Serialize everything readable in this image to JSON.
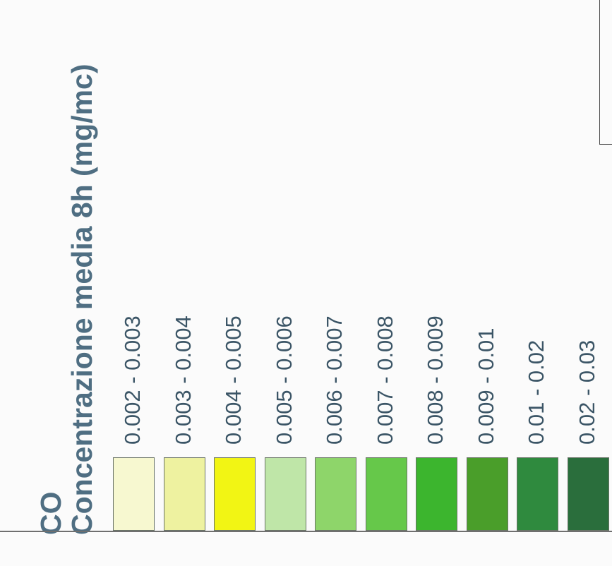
{
  "legend": {
    "pollutant": "CO",
    "title": "Concentrazione media 8h (mg/mc)"
  },
  "chart_data": {
    "type": "table",
    "title": "Concentrazione media 8h (mg/mc)",
    "pollutant": "CO",
    "classes": [
      {
        "label": "0.002 - 0.003",
        "min": 0.002,
        "max": 0.003,
        "color": "#f7f8d0"
      },
      {
        "label": "0.003 - 0.004",
        "min": 0.003,
        "max": 0.004,
        "color": "#eef2a0"
      },
      {
        "label": "0.004 - 0.005",
        "min": 0.004,
        "max": 0.005,
        "color": "#f2f514"
      },
      {
        "label": "0.005 - 0.006",
        "min": 0.005,
        "max": 0.006,
        "color": "#bfe6a8"
      },
      {
        "label": "0.006 - 0.007",
        "min": 0.006,
        "max": 0.007,
        "color": "#8ed56a"
      },
      {
        "label": "0.007 - 0.008",
        "min": 0.007,
        "max": 0.008,
        "color": "#66c84a"
      },
      {
        "label": "0.008 - 0.009",
        "min": 0.008,
        "max": 0.009,
        "color": "#3cb52e"
      },
      {
        "label": "0.009 - 0.01",
        "min": 0.009,
        "max": 0.01,
        "color": "#4a9e2a"
      },
      {
        "label": "0.01 - 0.02",
        "min": 0.01,
        "max": 0.02,
        "color": "#2f8a3e"
      },
      {
        "label": "0.02 - 0.03",
        "min": 0.02,
        "max": 0.03,
        "color": "#2a6e3c"
      }
    ]
  }
}
